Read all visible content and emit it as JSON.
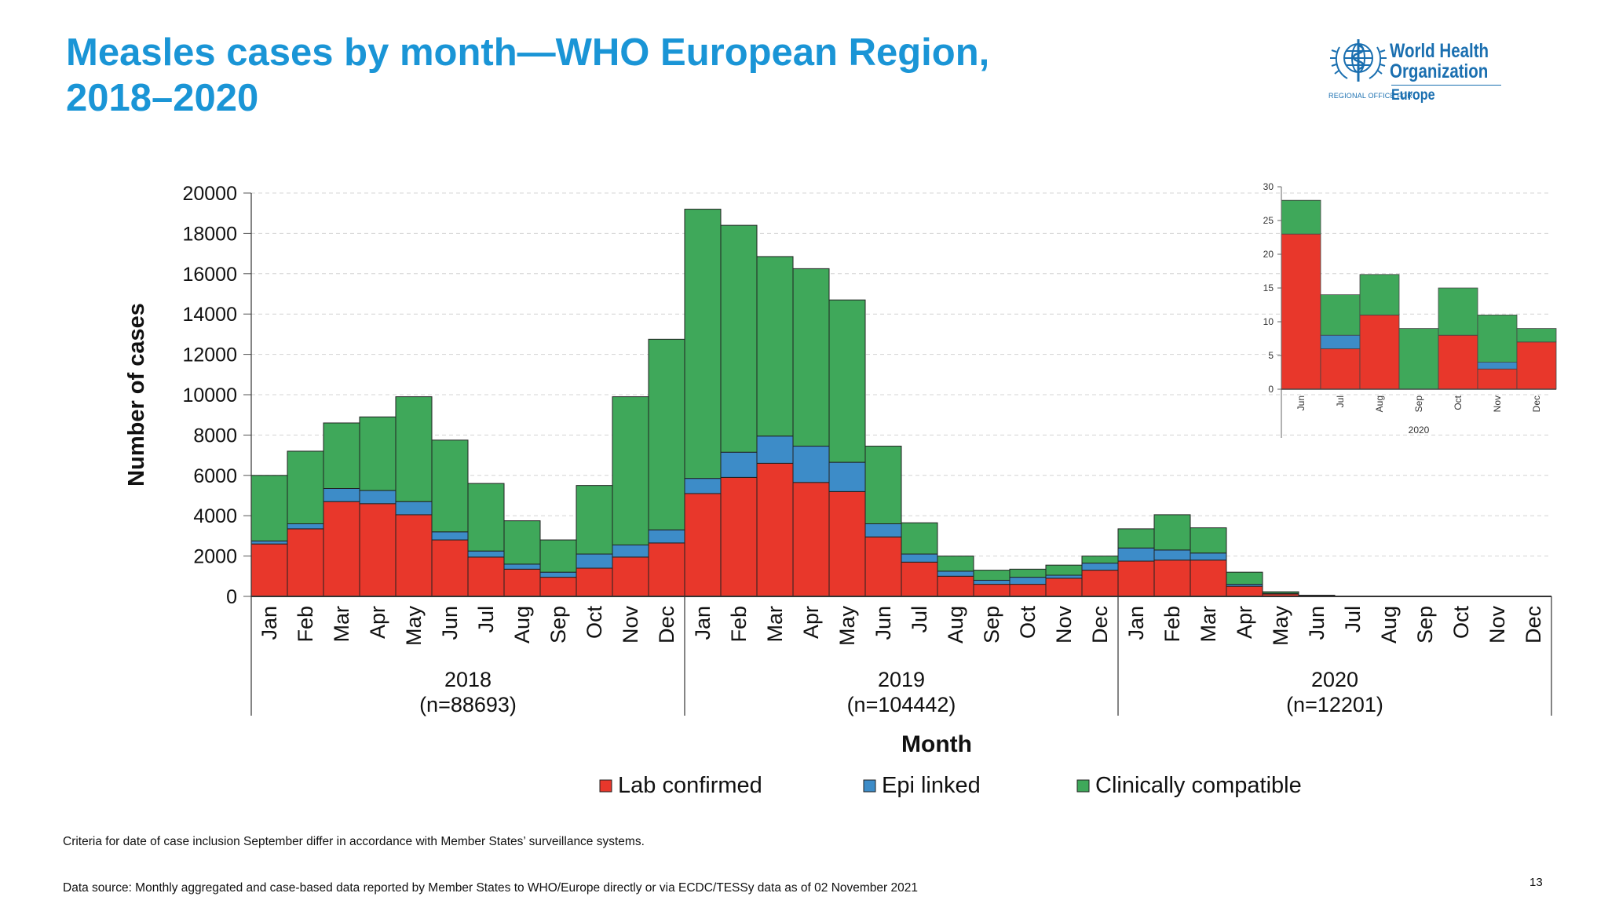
{
  "slide": {
    "title_lines": [
      "Measles cases by month—WHO European Region,",
      "2018–2020"
    ],
    "logo": {
      "name_line1": "World Health",
      "name_line2": "Organization",
      "regional_office": "REGIONAL OFFICE FOR",
      "region": "Europe",
      "icon": "who-emblem-icon"
    },
    "footnote_criteria": "Criteria for date of case inclusion September differ in accordance with Member States’ surveillance systems.",
    "footnote_source": "Data source: Monthly aggregated and case-based data reported by Member States to WHO/Europe directly or via ECDC/TESSy data as of 02 November 2021",
    "page_number": "13"
  },
  "colors": {
    "title": "#1a95d6",
    "lab": "#e8372b",
    "epi": "#3d8cc8",
    "clin": "#3fa85a",
    "logo": "#1a6fb0"
  },
  "chart_data": [
    {
      "type": "bar",
      "stacked": true,
      "ylabel": "Number of cases",
      "xlabel": "Month",
      "ylim": [
        0,
        20000
      ],
      "yticks": [
        0,
        2000,
        4000,
        6000,
        8000,
        10000,
        12000,
        14000,
        16000,
        18000,
        20000
      ],
      "grid": true,
      "legend_position": "bottom",
      "months": [
        "Jan",
        "Feb",
        "Mar",
        "Apr",
        "May",
        "Jun",
        "Jul",
        "Aug",
        "Sep",
        "Oct",
        "Nov",
        "Dec"
      ],
      "groups": [
        {
          "year": "2018",
          "n_label": "(n=88693)"
        },
        {
          "year": "2019",
          "n_label": "(n=104442)"
        },
        {
          "year": "2020",
          "n_label": "(n=12201)"
        }
      ],
      "series": [
        {
          "name": "Lab confirmed",
          "color": "#e8372b",
          "values": [
            2600,
            3350,
            4700,
            4600,
            4050,
            2800,
            1950,
            1350,
            950,
            1400,
            1950,
            2650,
            5100,
            5900,
            6600,
            5650,
            5200,
            2950,
            1700,
            1000,
            600,
            600,
            900,
            1300,
            1750,
            1800,
            1800,
            500,
            120,
            30,
            5,
            0,
            0,
            0,
            0,
            0
          ]
        },
        {
          "name": "Epi linked",
          "color": "#3d8cc8",
          "values": [
            150,
            250,
            650,
            650,
            650,
            400,
            300,
            250,
            250,
            700,
            600,
            650,
            750,
            1250,
            1350,
            1800,
            1450,
            650,
            400,
            250,
            200,
            350,
            150,
            350,
            650,
            500,
            350,
            100,
            30,
            10,
            0,
            0,
            0,
            0,
            0,
            0
          ]
        },
        {
          "name": "Clinically compatible",
          "color": "#3fa85a",
          "values": [
            3250,
            3600,
            3250,
            3650,
            5200,
            4550,
            3350,
            2150,
            1600,
            3400,
            7350,
            9450,
            13350,
            11250,
            8900,
            8800,
            8050,
            3850,
            1550,
            750,
            500,
            400,
            500,
            350,
            950,
            1750,
            1250,
            600,
            80,
            20,
            5,
            0,
            0,
            0,
            0,
            0
          ]
        }
      ]
    },
    {
      "type": "bar",
      "stacked": true,
      "inset": true,
      "xlabel": "2020",
      "ylim": [
        0,
        30
      ],
      "yticks": [
        0,
        5,
        10,
        15,
        20,
        25,
        30
      ],
      "categories": [
        "Jun",
        "Jul",
        "Aug",
        "Sep",
        "Oct",
        "Nov",
        "Dec"
      ],
      "series": [
        {
          "name": "Lab confirmed",
          "color": "#e8372b",
          "values": [
            23,
            6,
            11,
            0,
            8,
            3,
            7
          ]
        },
        {
          "name": "Epi linked",
          "color": "#3d8cc8",
          "values": [
            0,
            2,
            0,
            0,
            0,
            1,
            0
          ]
        },
        {
          "name": "Clinically compatible",
          "color": "#3fa85a",
          "values": [
            5,
            6,
            6,
            9,
            7,
            7,
            2
          ]
        }
      ]
    }
  ]
}
